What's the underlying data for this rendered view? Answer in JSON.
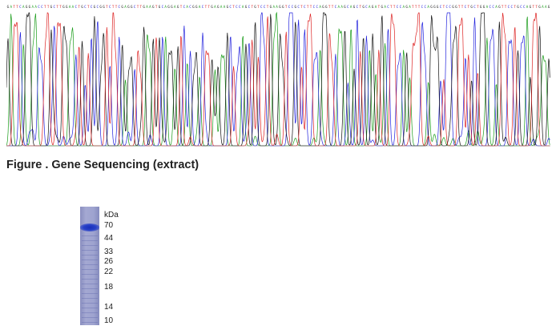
{
  "caption": "Figure . Gene Sequencing (extract)",
  "sequence": "GATTCAGGAACCTTGCTTGGAACTGCTCGCGGTCTTCGAGGCTTGAAGTGCAGGAGTCACGGACTTGAGAAGCTCCAGCTGTCCTGAAGGTCCGCTCTTCCAGGTTCAAGCAGCTGCAGATGACTTCCAGATTTCCAGGGCTCCGGTTCTGCTGGACCAGTTCCTGCCAGTTGAAG",
  "colors": {
    "A": "#1a9c1a",
    "C": "#2222dd",
    "G": "#111111",
    "T": "#dd2222"
  },
  "gel": {
    "unit": "kDa",
    "ladder": [
      70,
      44,
      33,
      26,
      22,
      18,
      14,
      10
    ]
  }
}
